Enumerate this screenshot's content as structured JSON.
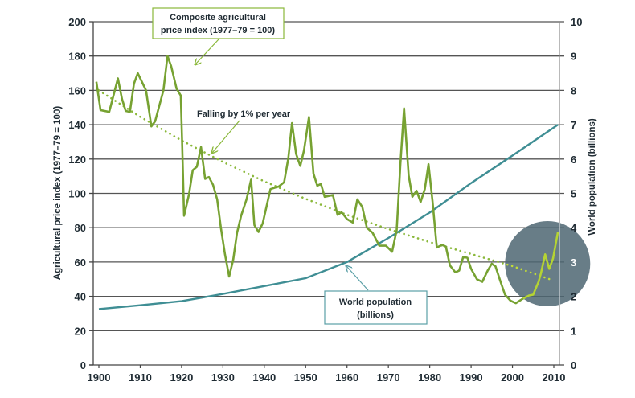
{
  "chart_data": {
    "type": "line",
    "title": "",
    "xlabel": "",
    "ylabel": "Agricultural price index (1977–79 = 100)",
    "y2label": "World population (billions)",
    "xlim": [
      1900,
      2010
    ],
    "ylim": [
      0,
      200
    ],
    "y2lim": [
      0,
      10
    ],
    "grid": true,
    "x_ticks": [
      1900,
      1910,
      1920,
      1930,
      1940,
      1950,
      1960,
      1970,
      1980,
      1990,
      2000,
      2010
    ],
    "y_ticks": [
      0,
      20,
      40,
      60,
      80,
      100,
      120,
      140,
      160,
      180,
      200
    ],
    "y2_ticks": [
      0,
      1,
      2,
      3,
      4,
      5,
      6,
      7,
      8,
      9,
      10
    ],
    "series": [
      {
        "name": "Composite agricultural price index (1977–79 = 100)",
        "axis": "left",
        "color": "#77a232",
        "highlight_color": "#b5d334",
        "x": [
          1899.4,
          1900.4,
          1902.5,
          1904.6,
          1905.6,
          1906.5,
          1907.5,
          1908.5,
          1909.4,
          1911.4,
          1912.7,
          1913.6,
          1915.6,
          1916.6,
          1917.5,
          1918.8,
          1919.8,
          1920.1,
          1920.6,
          1921.8,
          1922.7,
          1923.7,
          1924.7,
          1925.7,
          1926.6,
          1927.6,
          1928.6,
          1929.5,
          1930.5,
          1931.5,
          1932.5,
          1933.4,
          1934.4,
          1935.7,
          1936.8,
          1937.6,
          1938.6,
          1939.6,
          1941.5,
          1942.8,
          1943.5,
          1944.8,
          1945.8,
          1946.7,
          1947.7,
          1948.7,
          1949.6,
          1950.8,
          1951.9,
          1952.8,
          1953.7,
          1954.6,
          1956.6,
          1957.7,
          1958.7,
          1960.0,
          1961.4,
          1962.5,
          1963.7,
          1964.8,
          1966.2,
          1967.8,
          1969.4,
          1970.9,
          1972.0,
          1972.9,
          1973.8,
          1974.9,
          1975.8,
          1976.8,
          1977.8,
          1978.8,
          1979.7,
          1980.7,
          1981.7,
          1983.0,
          1983.9,
          1984.9,
          1986.2,
          1987.1,
          1988.1,
          1989.1,
          1990.0,
          1991.4,
          1992.7,
          1994.0,
          1995.0,
          1995.9,
          1997.2,
          1998.2,
          1999.5,
          2000.8,
          2002.4,
          2004.0,
          2005.0,
          2006.3,
          2006.9,
          2007.9,
          2008.9,
          2009.8,
          2011.0
        ],
        "values": [
          165,
          148.5,
          147.5,
          167,
          155,
          148,
          147.5,
          164,
          170,
          160,
          139,
          142,
          160,
          180,
          174,
          161,
          157,
          133,
          87,
          99.5,
          113.5,
          115.5,
          127,
          108.5,
          109.5,
          105,
          96.5,
          80,
          64.5,
          51.5,
          61.5,
          77,
          87,
          96.5,
          108,
          81.5,
          77.5,
          82.5,
          102.5,
          103.5,
          104,
          106.5,
          120.5,
          141,
          123,
          116,
          125,
          144.5,
          111.5,
          104.5,
          105.5,
          98,
          99,
          87.5,
          89,
          85,
          83,
          96.5,
          92,
          80,
          77,
          69.5,
          69.5,
          66,
          78.5,
          117,
          149.5,
          110.5,
          98,
          101.5,
          95,
          102.5,
          117,
          95,
          68.5,
          70,
          69,
          58,
          54,
          55,
          63,
          62.5,
          56,
          50,
          48.5,
          55,
          59,
          57.5,
          48,
          41,
          37.5,
          36,
          38.5,
          40.5,
          41,
          48.5,
          53.5,
          64.5,
          56,
          62,
          77.5
        ]
      },
      {
        "name": "Falling by 1% per year",
        "axis": "left",
        "style": "dotted",
        "color": "#8ab83a",
        "highlight_color": "#c2dc3a",
        "x": [
          1900,
          1910,
          1920,
          1930,
          1940,
          1950,
          1960,
          1970,
          1980,
          1990,
          2000,
          2009
        ],
        "values": [
          160,
          144.6,
          130.8,
          118.3,
          107.0,
          96.8,
          87.5,
          79.2,
          71.6,
          64.7,
          57.6,
          50
        ]
      },
      {
        "name": "World population (billions)",
        "axis": "right",
        "color": "#3f8e94",
        "x": [
          1900,
          1910,
          1920,
          1930,
          1940,
          1950,
          1960,
          1970,
          1980,
          1990,
          2000,
          2011
        ],
        "values": [
          1.63,
          1.74,
          1.86,
          2.07,
          2.3,
          2.53,
          3.0,
          3.7,
          4.44,
          5.3,
          6.1,
          7.0
        ]
      }
    ],
    "annotations": [
      {
        "id": "price",
        "lines": [
          "Composite agricultural",
          "price index (1977–79 = 100)"
        ],
        "border_color": "#8ab83a",
        "arrow_color": "#8ab83a"
      },
      {
        "id": "trend",
        "lines": [
          "Falling by 1% per year"
        ],
        "arrow_color": "#8ab83a"
      },
      {
        "id": "population",
        "lines": [
          "World population",
          "(billions)"
        ],
        "border_color": "#5a9fa6",
        "arrow_color": "#5a9fa6"
      }
    ],
    "highlight_region": {
      "description": "Shaded circle highlighting the 1996–2011 price upturn",
      "x_center": 2008.5,
      "y_center": 59,
      "color": "#4e6672"
    },
    "gridline_color": "#555555",
    "axis_color": "#8a8a8a",
    "text_color": "#1f2b33"
  }
}
